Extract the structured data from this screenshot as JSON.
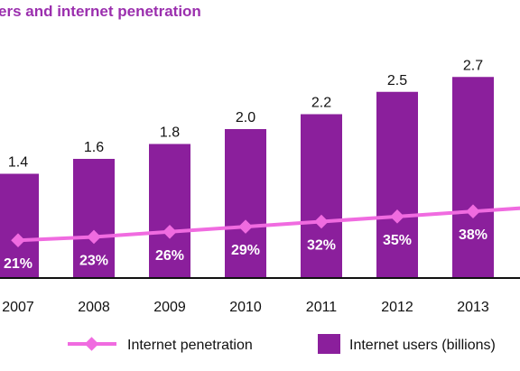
{
  "chart_data": {
    "type": "bar",
    "title": "ers and internet penetration",
    "categories": [
      "2007",
      "2008",
      "2009",
      "2010",
      "2011",
      "2012",
      "2013"
    ],
    "series": [
      {
        "name": "Internet users (billions)",
        "type": "bar",
        "values": [
          1.4,
          1.6,
          1.8,
          2.0,
          2.2,
          2.5,
          2.7
        ],
        "labels": [
          "1.4",
          "1.6",
          "1.8",
          "2.0",
          "2.2",
          "2.5",
          "2.7"
        ]
      },
      {
        "name": "Internet penetration",
        "type": "line",
        "values": [
          21,
          23,
          26,
          29,
          32,
          35,
          38
        ],
        "labels": [
          "21%",
          "23%",
          "26%",
          "29%",
          "32%",
          "35%",
          "38%"
        ]
      }
    ],
    "legend_position": "bottom",
    "grid": false
  },
  "colors": {
    "bar": "#8b1f9c",
    "line": "#f06be0",
    "title": "#9b2fae",
    "axis": "#111111"
  }
}
